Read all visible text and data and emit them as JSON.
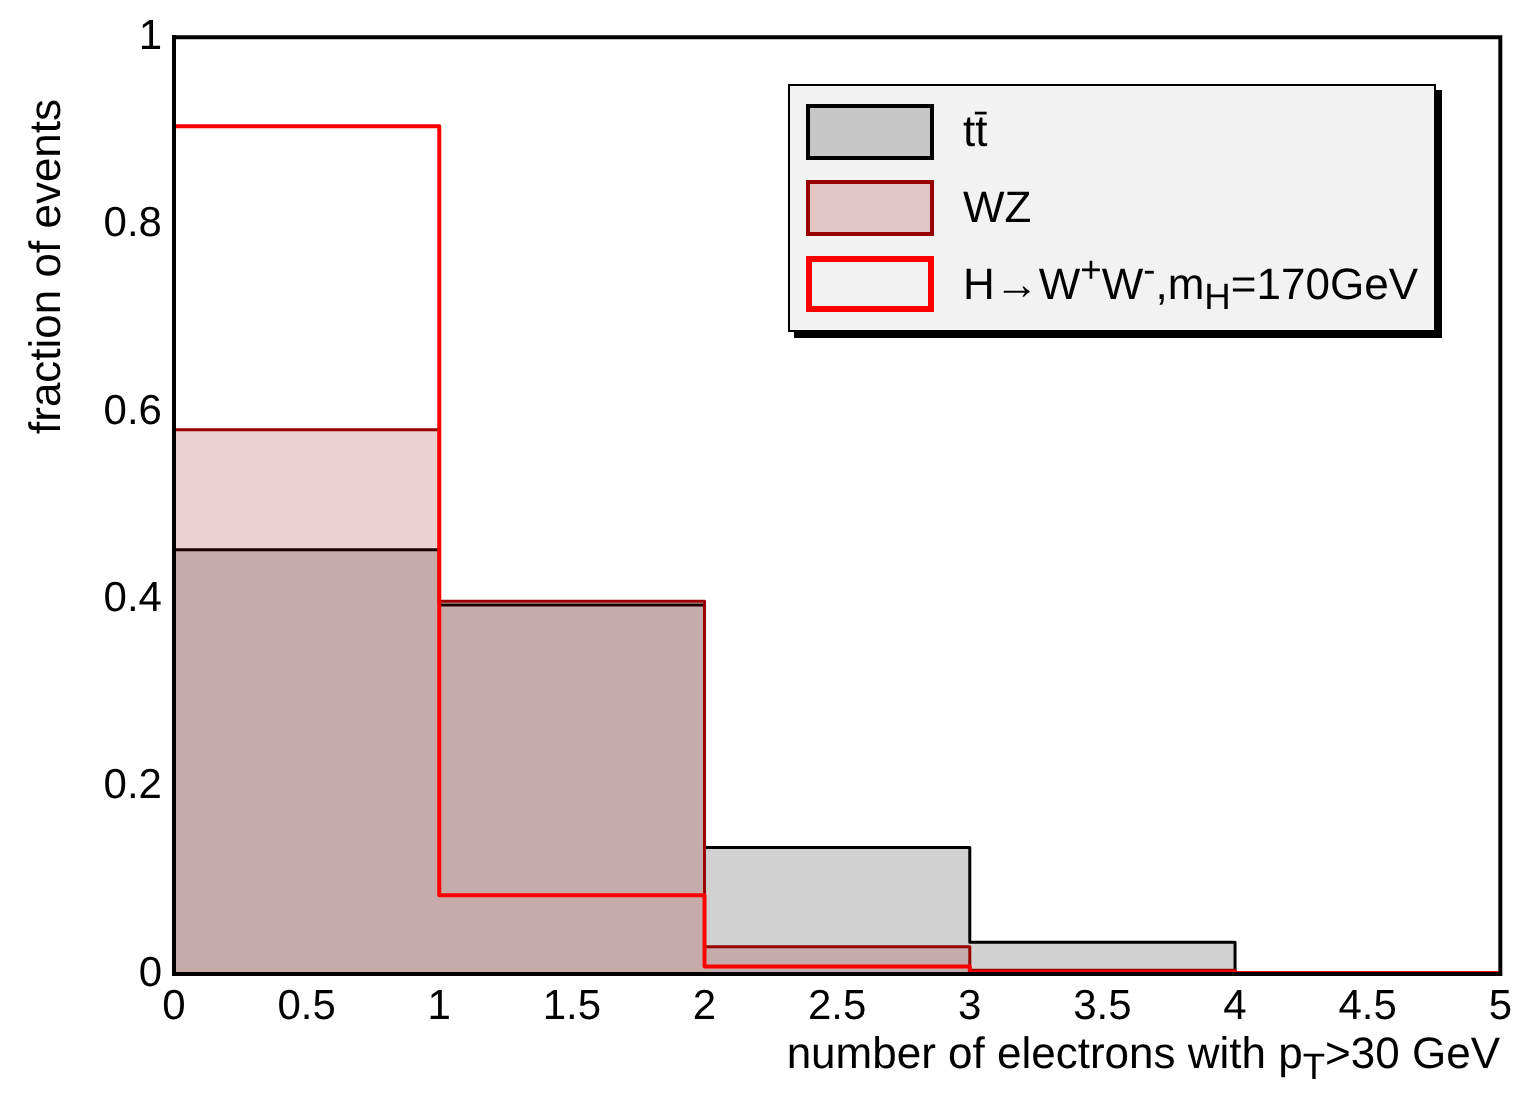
{
  "chart_data": {
    "type": "area",
    "xlabel": "number of electrons with p$_{T}$>30 GeV",
    "ylabel": "fraction of events",
    "x": [
      0,
      1,
      2,
      3,
      4,
      5
    ],
    "series": [
      {
        "name": "tt̄",
        "color": "#000000",
        "values": [
          0.453,
          0.394,
          0.135,
          0.034,
          0,
          0
        ]
      },
      {
        "name": "WZ",
        "color": "#990000",
        "values": [
          0.581,
          0.398,
          0.029,
          0.004,
          0,
          0
        ]
      },
      {
        "name": "H→W$^{+}$W$^{-}$,m$_{H}$=170GeV",
        "type": "step",
        "color": "#ff0000",
        "values": [
          0.905,
          0.084,
          0.008,
          0.002,
          0.001,
          0.001
        ]
      }
    ],
    "xlim": [
      0,
      5
    ],
    "xticks": [
      0,
      0.5,
      1,
      1.5,
      2,
      2.5,
      3,
      3.5,
      4,
      4.5,
      5
    ],
    "ylim": [
      0,
      1
    ],
    "yticks": [
      0,
      0.2,
      0.4,
      0.6,
      0.8,
      1
    ],
    "grid": false,
    "legend": "top right"
  }
}
